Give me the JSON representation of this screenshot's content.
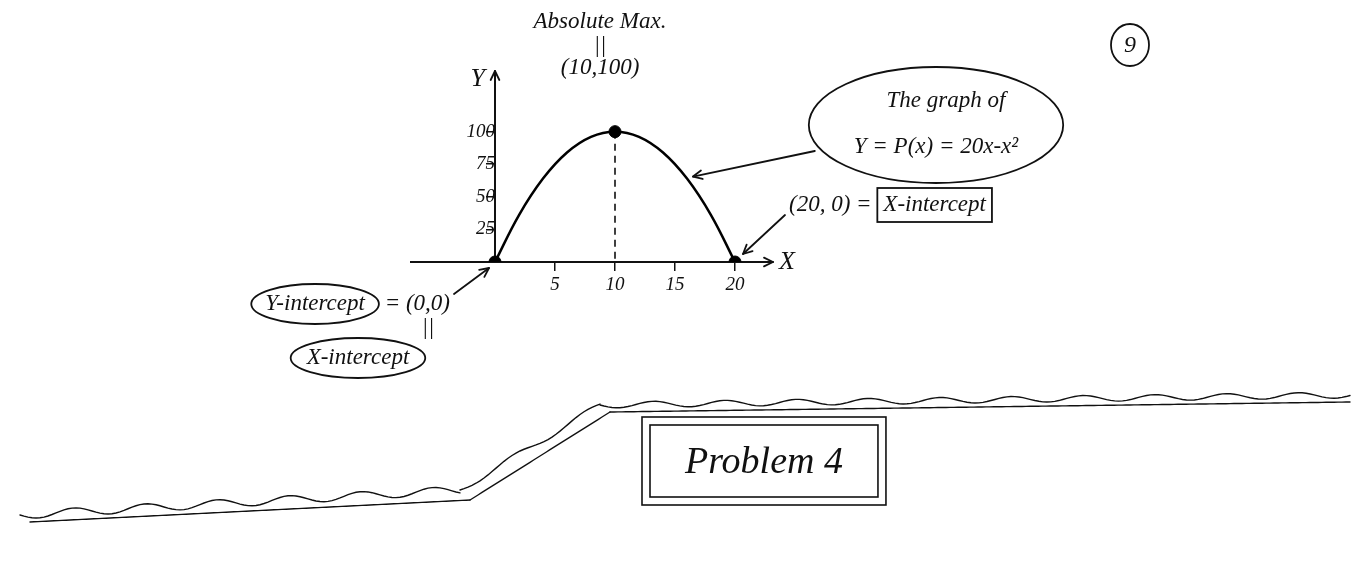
{
  "page_number": "9",
  "problem": "Problem 4",
  "chart_data": {
    "type": "line",
    "x_label": "X",
    "y_label": "Y",
    "x": [
      0,
      2,
      4,
      6,
      8,
      10,
      12,
      14,
      16,
      18,
      20
    ],
    "values": [
      0,
      36,
      64,
      84,
      96,
      100,
      96,
      84,
      64,
      36,
      0
    ],
    "color": "#000000",
    "line_style": "solid",
    "xlim": [
      -7,
      23
    ],
    "ylim": [
      0,
      145
    ],
    "xticks": [
      5,
      10,
      15,
      20
    ],
    "yticks": [
      25,
      50,
      75,
      100
    ],
    "grid": false,
    "points": {
      "x": [
        0,
        10,
        20
      ],
      "y": [
        0,
        100,
        0
      ],
      "marker": "circle"
    },
    "guide": {
      "x": [
        10,
        10
      ],
      "y": [
        100,
        0
      ],
      "line_style": "dashed"
    },
    "annotations": {
      "max": {
        "lines": [
          "Absolute Max.",
          "||",
          "(10,100)"
        ]
      },
      "graph": {
        "lines": [
          "The graph of",
          "Y = P(x) = 20x-x²"
        ]
      },
      "x_intercept": {
        "text": "(20, 0) = ",
        "boxed": "X-intercept"
      },
      "y_intercept": {
        "circled": "Y-intercept",
        "text": " = (0,0)",
        "under": "||",
        "below_circled": "X-intercept"
      }
    }
  }
}
